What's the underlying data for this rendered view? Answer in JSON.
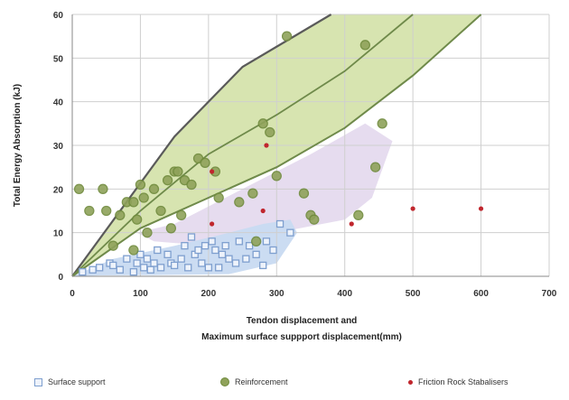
{
  "chart_data": {
    "type": "scatter",
    "xlabel_lines": [
      "Tendon displacement and",
      "Maximum surface suppport displacement(mm)"
    ],
    "ylabel": "Total Energy Absorption (kJ)",
    "xlim": [
      0,
      700
    ],
    "ylim": [
      0,
      60
    ],
    "x_ticks": [
      0,
      100,
      200,
      300,
      400,
      500,
      600,
      700
    ],
    "x_tick_labels": [
      "0",
      "100",
      "200",
      "300",
      "400",
      "500",
      "600",
      "700"
    ],
    "y_ticks": [
      0,
      10,
      20,
      30,
      40,
      50,
      60
    ],
    "y_tick_labels": [
      "0",
      "10",
      "20",
      "30",
      "40",
      "50",
      "60"
    ],
    "grid": true,
    "legend_position": "bottom",
    "colors": {
      "surface_support": "#7e9fcf",
      "reinforcement": "#8fa25a",
      "friction_rock": "#c0262d",
      "green_band": "#d7e4b0",
      "green_line": "#6f8a4a",
      "upper_line": "#5a5a5a",
      "purple_band": "#e6dcef",
      "blue_band": "#c8daf1"
    },
    "series": [
      {
        "name": "Surface support",
        "marker": "square",
        "points": [
          [
            15,
            1
          ],
          [
            30,
            1.5
          ],
          [
            40,
            2
          ],
          [
            55,
            3
          ],
          [
            60,
            2.5
          ],
          [
            70,
            1.5
          ],
          [
            80,
            4
          ],
          [
            90,
            1
          ],
          [
            95,
            3
          ],
          [
            100,
            5
          ],
          [
            105,
            2
          ],
          [
            110,
            4
          ],
          [
            115,
            1.5
          ],
          [
            120,
            3
          ],
          [
            125,
            6
          ],
          [
            130,
            2
          ],
          [
            140,
            5
          ],
          [
            145,
            3
          ],
          [
            150,
            2.5
          ],
          [
            160,
            4
          ],
          [
            165,
            7
          ],
          [
            170,
            2
          ],
          [
            175,
            9
          ],
          [
            180,
            5
          ],
          [
            185,
            6
          ],
          [
            190,
            3
          ],
          [
            195,
            7
          ],
          [
            200,
            2
          ],
          [
            205,
            8
          ],
          [
            210,
            6
          ],
          [
            215,
            2
          ],
          [
            220,
            5
          ],
          [
            225,
            7
          ],
          [
            230,
            4
          ],
          [
            240,
            3
          ],
          [
            245,
            8
          ],
          [
            255,
            4
          ],
          [
            260,
            7
          ],
          [
            270,
            5
          ],
          [
            280,
            2.5
          ],
          [
            285,
            8
          ],
          [
            295,
            6
          ],
          [
            305,
            12
          ],
          [
            320,
            10
          ]
        ]
      },
      {
        "name": "Reinforcement",
        "marker": "circle",
        "points": [
          [
            10,
            20
          ],
          [
            25,
            15
          ],
          [
            45,
            20
          ],
          [
            50,
            15
          ],
          [
            70,
            14
          ],
          [
            80,
            17
          ],
          [
            90,
            17
          ],
          [
            95,
            13
          ],
          [
            100,
            21
          ],
          [
            105,
            18
          ],
          [
            110,
            10
          ],
          [
            120,
            20
          ],
          [
            130,
            15
          ],
          [
            140,
            22
          ],
          [
            145,
            11
          ],
          [
            150,
            24
          ],
          [
            155,
            24
          ],
          [
            165,
            22
          ],
          [
            175,
            21
          ],
          [
            185,
            27
          ],
          [
            195,
            26
          ],
          [
            210,
            24
          ],
          [
            215,
            18
          ],
          [
            245,
            17
          ],
          [
            265,
            19
          ],
          [
            280,
            35
          ],
          [
            290,
            33
          ],
          [
            300,
            23
          ],
          [
            315,
            55
          ],
          [
            340,
            19
          ],
          [
            350,
            14
          ],
          [
            355,
            13
          ],
          [
            420,
            14
          ],
          [
            430,
            53
          ],
          [
            445,
            25
          ],
          [
            455,
            35
          ],
          [
            270,
            8
          ],
          [
            90,
            6
          ],
          [
            60,
            7
          ],
          [
            160,
            14
          ]
        ]
      },
      {
        "name": "Friction Rock Stabalisers",
        "marker": "dot",
        "points": [
          [
            205,
            12
          ],
          [
            205,
            24
          ],
          [
            280,
            15
          ],
          [
            285,
            30
          ],
          [
            410,
            12
          ],
          [
            500,
            15.5
          ],
          [
            600,
            15.5
          ]
        ]
      }
    ],
    "green_band_upper": [
      [
        0,
        0
      ],
      [
        150,
        32
      ],
      [
        250,
        48
      ],
      [
        380,
        60
      ]
    ],
    "green_band_lower": [
      [
        0,
        0
      ],
      [
        100,
        11
      ],
      [
        200,
        18
      ],
      [
        300,
        25
      ],
      [
        400,
        34
      ],
      [
        500,
        46
      ],
      [
        600,
        60
      ]
    ],
    "mid_line": [
      [
        0,
        0
      ],
      [
        100,
        15
      ],
      [
        200,
        28
      ],
      [
        300,
        37
      ],
      [
        400,
        47
      ],
      [
        500,
        60
      ]
    ],
    "purple_band": [
      [
        95,
        10
      ],
      [
        150,
        12
      ],
      [
        250,
        20
      ],
      [
        350,
        28
      ],
      [
        430,
        35
      ],
      [
        470,
        31
      ],
      [
        440,
        18
      ],
      [
        400,
        13
      ],
      [
        300,
        10
      ],
      [
        200,
        7
      ],
      [
        120,
        8
      ]
    ],
    "blue_band": [
      [
        0,
        0
      ],
      [
        60,
        4
      ],
      [
        150,
        7
      ],
      [
        230,
        10
      ],
      [
        280,
        12
      ],
      [
        320,
        13
      ],
      [
        330,
        10
      ],
      [
        300,
        3
      ],
      [
        230,
        0.5
      ],
      [
        120,
        0.3
      ],
      [
        40,
        0.2
      ]
    ]
  }
}
